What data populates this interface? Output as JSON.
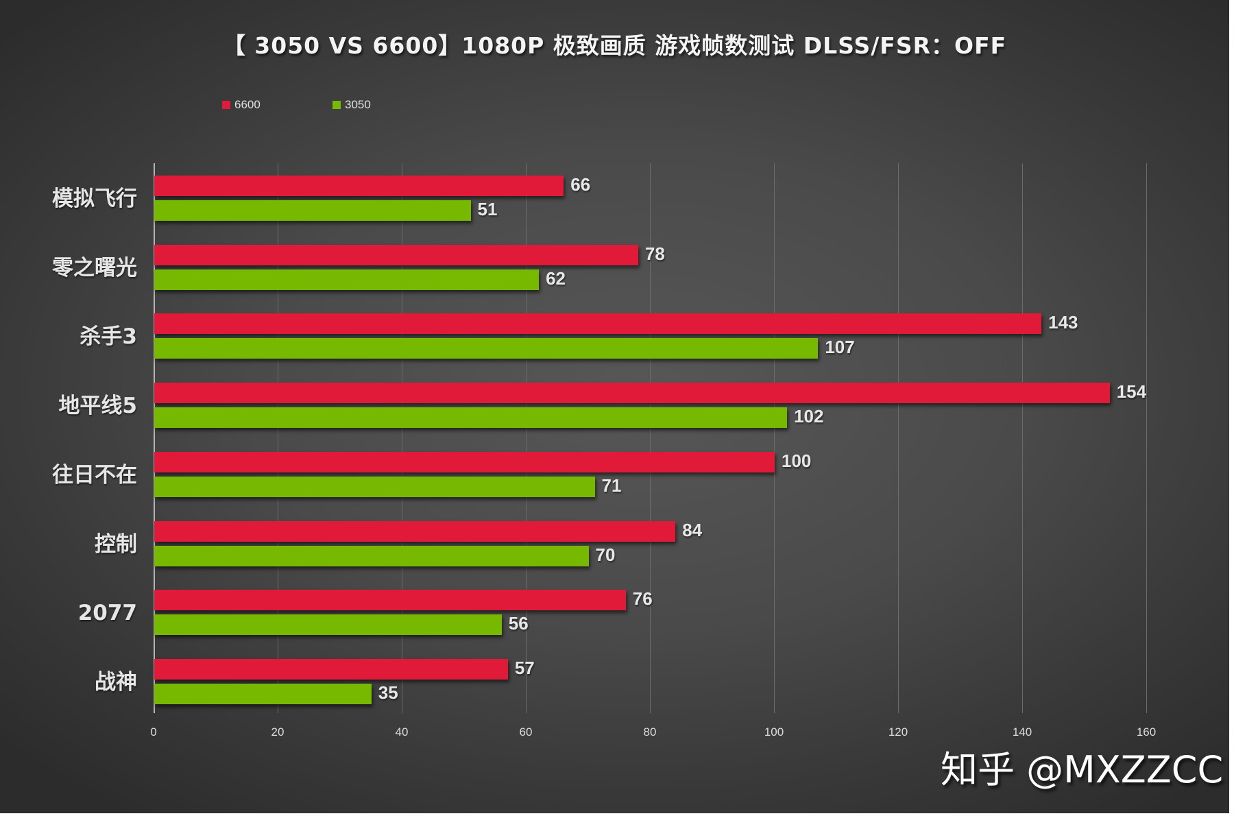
{
  "chart_data": {
    "type": "bar",
    "orientation": "horizontal",
    "title": "【 3050 VS 6600】1080P 极致画质 游戏帧数测试 DLSS/FSR：OFF",
    "categories": [
      "模拟飞行",
      "零之曙光",
      "杀手3",
      "地平线5",
      "往日不在",
      "控制",
      "2077",
      "战神"
    ],
    "series": [
      {
        "name": "6600",
        "color": "#E01A38",
        "values": [
          66,
          78,
          143,
          154,
          100,
          84,
          76,
          57
        ]
      },
      {
        "name": "3050",
        "color": "#77B900",
        "values": [
          51,
          62,
          107,
          102,
          71,
          70,
          56,
          35
        ]
      }
    ],
    "xlabel": "",
    "ylabel": "",
    "xlim": [
      0,
      160
    ],
    "xticks": [
      "0",
      "20",
      "40",
      "60",
      "80",
      "100",
      "120",
      "140",
      "160"
    ],
    "grid": true,
    "legend_position": "top-left",
    "data_labels": true
  },
  "legend": [
    {
      "label": "6600",
      "color": "#E01A38"
    },
    {
      "label": "3050",
      "color": "#77B900"
    }
  ],
  "watermark": "知乎 @MXZZCC"
}
